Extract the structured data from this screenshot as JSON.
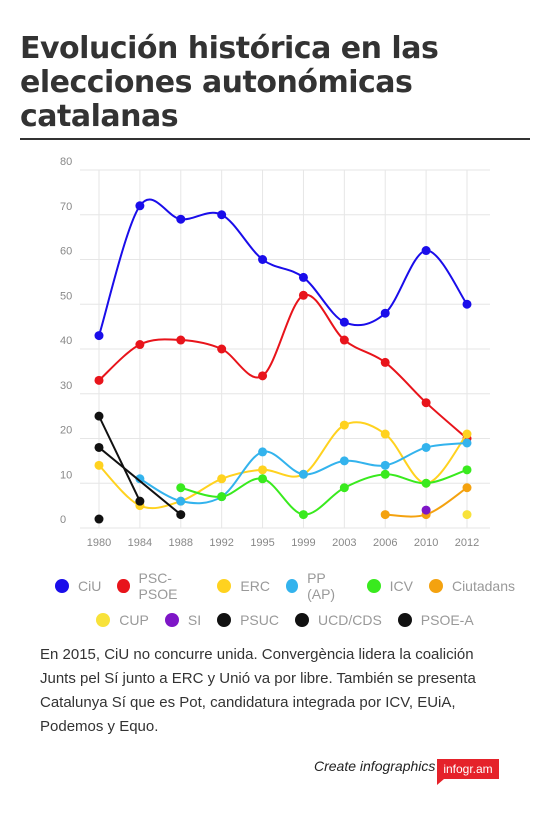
{
  "title": "Evolución histórica en las elecciones autonómicas catalanas",
  "note": "En 2015, CiU no concurre unida. Convergència lidera la coalición Junts pel Sí junto a ERC y Unió va por libre. También se presenta Catalunya Sí que es Pot, candidatura integrada por ICV, EUiA, Podemos y Equo.",
  "footer": {
    "cta": "Create infographics",
    "brand": "infogr.am"
  },
  "chart_data": {
    "type": "line",
    "title": "",
    "xlabel": "",
    "ylabel": "",
    "ylim": [
      0,
      80
    ],
    "yticks": [
      0,
      10,
      20,
      30,
      40,
      50,
      60,
      70,
      80
    ],
    "categories": [
      "1980",
      "1984",
      "1988",
      "1992",
      "1995",
      "1999",
      "2003",
      "2006",
      "2010",
      "2012"
    ],
    "grid": true,
    "legend_position": "bottom",
    "series": [
      {
        "name": "CiU",
        "color": "#1a0dea",
        "values": [
          43,
          72,
          69,
          70,
          60,
          56,
          46,
          48,
          62,
          50
        ]
      },
      {
        "name": "PSC-PSOE",
        "color": "#e8141b",
        "values": [
          33,
          41,
          42,
          40,
          34,
          52,
          42,
          37,
          28,
          20
        ]
      },
      {
        "name": "ERC",
        "color": "#ffd21f",
        "values": [
          14,
          5,
          6,
          11,
          13,
          12,
          23,
          21,
          10,
          21
        ]
      },
      {
        "name": "PP (AP)",
        "color": "#33b3ed",
        "values": [
          null,
          11,
          6,
          7,
          17,
          12,
          15,
          14,
          18,
          19
        ]
      },
      {
        "name": "ICV",
        "color": "#39ea1e",
        "values": [
          null,
          null,
          9,
          7,
          11,
          3,
          9,
          12,
          10,
          13
        ]
      },
      {
        "name": "Ciutadans",
        "color": "#f4a20f",
        "values": [
          null,
          null,
          null,
          null,
          null,
          null,
          null,
          3,
          3,
          9
        ]
      },
      {
        "name": "CUP",
        "color": "#f8e23a",
        "values": [
          null,
          null,
          null,
          null,
          null,
          null,
          null,
          null,
          null,
          3
        ]
      },
      {
        "name": "SI",
        "color": "#7e16c7",
        "values": [
          null,
          null,
          null,
          null,
          null,
          null,
          null,
          null,
          4,
          null
        ]
      },
      {
        "name": "PSUC",
        "color": "#111111",
        "values": [
          25,
          6,
          null,
          null,
          null,
          null,
          null,
          null,
          null,
          null
        ]
      },
      {
        "name": "UCD/CDS",
        "color": "#111111",
        "values": [
          18,
          null,
          3,
          null,
          null,
          null,
          null,
          null,
          null,
          null
        ]
      },
      {
        "name": "PSOE-A",
        "color": "#111111",
        "values": [
          2,
          null,
          null,
          null,
          null,
          null,
          null,
          null,
          null,
          null
        ]
      }
    ]
  }
}
